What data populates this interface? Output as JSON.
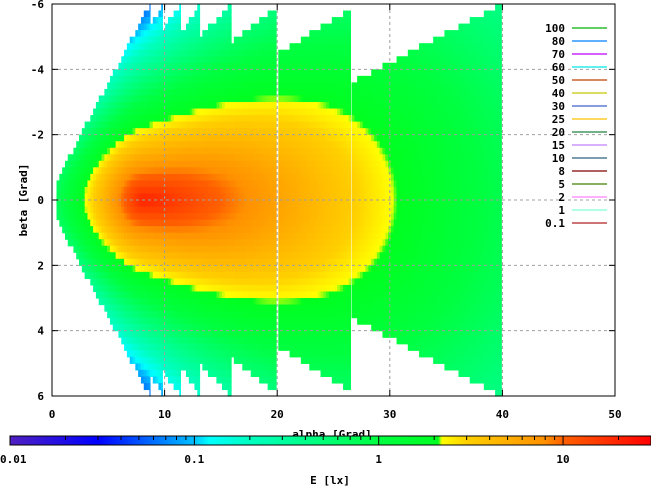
{
  "chart_data": {
    "type": "heatmap",
    "title": "",
    "xlabel": "alpha [Grad]",
    "ylabel": "beta [Grad]",
    "xlim": [
      0,
      50
    ],
    "ylim": [
      6,
      -6
    ],
    "xticks": [
      "0",
      "10",
      "20",
      "30",
      "40",
      "50"
    ],
    "xtick_values": [
      0,
      10,
      20,
      30,
      40,
      50
    ],
    "yticks": [
      "-6",
      "-4",
      "-2",
      "0",
      "2",
      "4",
      "6"
    ],
    "ytick_values": [
      -6,
      -4,
      -2,
      0,
      2,
      4,
      6
    ],
    "grid": true,
    "peak_value_lx": 20,
    "peak_location": {
      "alpha": 8,
      "beta": 0
    },
    "coverage_strips": [
      {
        "alpha": [
          0.4,
          8.7
        ],
        "beta_start": 0.6,
        "beta_end": 6
      },
      {
        "alpha": [
          8.7,
          9.8
        ],
        "beta_start": 5.3,
        "beta_end": 6
      },
      {
        "alpha": [
          9.8,
          11.4
        ],
        "beta_start": 5.2,
        "beta_end": 6
      },
      {
        "alpha": [
          11.4,
          13.1
        ],
        "beta_start": 5.1,
        "beta_end": 6
      },
      {
        "alpha": [
          13.1,
          15.9
        ],
        "beta_start": 5.0,
        "beta_end": 6
      },
      {
        "alpha": [
          15.9,
          19.9
        ],
        "beta_start": 4.8,
        "beta_end": 5.9
      },
      {
        "alpha": [
          20.1,
          26.5
        ],
        "beta_start": 4.5,
        "beta_end": 5.85
      },
      {
        "alpha": [
          26.6,
          39.9
        ],
        "beta_start": 3.6,
        "beta_end": 6
      }
    ],
    "legend": {
      "placement": "top-right",
      "entries": [
        {
          "label": "100",
          "color": "#00b000"
        },
        {
          "label": "80",
          "color": "#0080ff"
        },
        {
          "label": "70",
          "color": "#c000ff"
        },
        {
          "label": "60",
          "color": "#00e8e8"
        },
        {
          "label": "50",
          "color": "#c04000"
        },
        {
          "label": "40",
          "color": "#c8c800"
        },
        {
          "label": "30",
          "color": "#4060d0"
        },
        {
          "label": "25",
          "color": "#ffc000"
        },
        {
          "label": "20",
          "color": "#208040"
        },
        {
          "label": "15",
          "color": "#c080ff"
        },
        {
          "label": "10",
          "color": "#306080"
        },
        {
          "label": "8",
          "color": "#800000"
        },
        {
          "label": "5",
          "color": "#408000"
        },
        {
          "label": "2",
          "color": "#ff80ff"
        },
        {
          "label": "1",
          "color": "#80ffd0"
        },
        {
          "label": "0.1",
          "color": "#b02020"
        }
      ]
    },
    "colorbar": {
      "label": "E [lx]",
      "scale": "log",
      "range": [
        0.01,
        30
      ],
      "ticks": [
        "0.01",
        "0.1",
        "1",
        "10"
      ],
      "tick_values": [
        0.01,
        0.1,
        1,
        10
      ],
      "color_stops": [
        {
          "value": 0.01,
          "color": "#5020c0"
        },
        {
          "value": 0.03,
          "color": "#0000ff"
        },
        {
          "value": 0.1,
          "color": "#00c0ff"
        },
        {
          "value": 0.12,
          "color": "#00ffff"
        },
        {
          "value": 0.2,
          "color": "#00ffc0"
        },
        {
          "value": 1,
          "color": "#00ff40"
        },
        {
          "value": 2.1,
          "color": "#00ff20"
        },
        {
          "value": 2.2,
          "color": "#ffff00"
        },
        {
          "value": 3,
          "color": "#ffd000"
        },
        {
          "value": 8,
          "color": "#ff9000"
        },
        {
          "value": 10,
          "color": "#ff6000"
        },
        {
          "value": 30,
          "color": "#ff0000"
        }
      ]
    }
  }
}
